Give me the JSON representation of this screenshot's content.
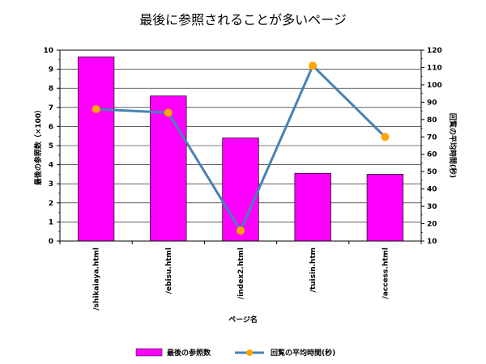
{
  "chart_data": {
    "type": "bar",
    "title": "最後に参照されることが多いページ",
    "categories": [
      "/shikaiaya.html",
      "/ebisu.html",
      "/index2.html",
      "/tuisin.htm",
      "/access.html"
    ],
    "xlabel": "ページ名",
    "ylabel": "最後の参照数（×100）",
    "y2label": "回覧の平均時間(秒)",
    "ylim": [
      0,
      10
    ],
    "yticks": [
      "0",
      "1",
      "2",
      "3",
      "4",
      "5",
      "6",
      "7",
      "8",
      "9",
      "10"
    ],
    "y2lim": [
      10,
      120
    ],
    "y2ticks": [
      "10",
      "20",
      "30",
      "40",
      "50",
      "60",
      "70",
      "80",
      "90",
      "100",
      "110",
      "120"
    ],
    "grid": true,
    "legend_position": "bottom",
    "series": [
      {
        "name": "最後の参照数",
        "type": "bar",
        "axis": "left",
        "color": "#FF00FF",
        "values": [
          9.65,
          7.6,
          5.4,
          3.55,
          3.5
        ]
      },
      {
        "name": "回覧の平均時間(秒)",
        "type": "line",
        "axis": "right",
        "color": "#4682B4",
        "marker_color": "#FFA500",
        "values": [
          86,
          84,
          16,
          111,
          70
        ]
      }
    ]
  }
}
